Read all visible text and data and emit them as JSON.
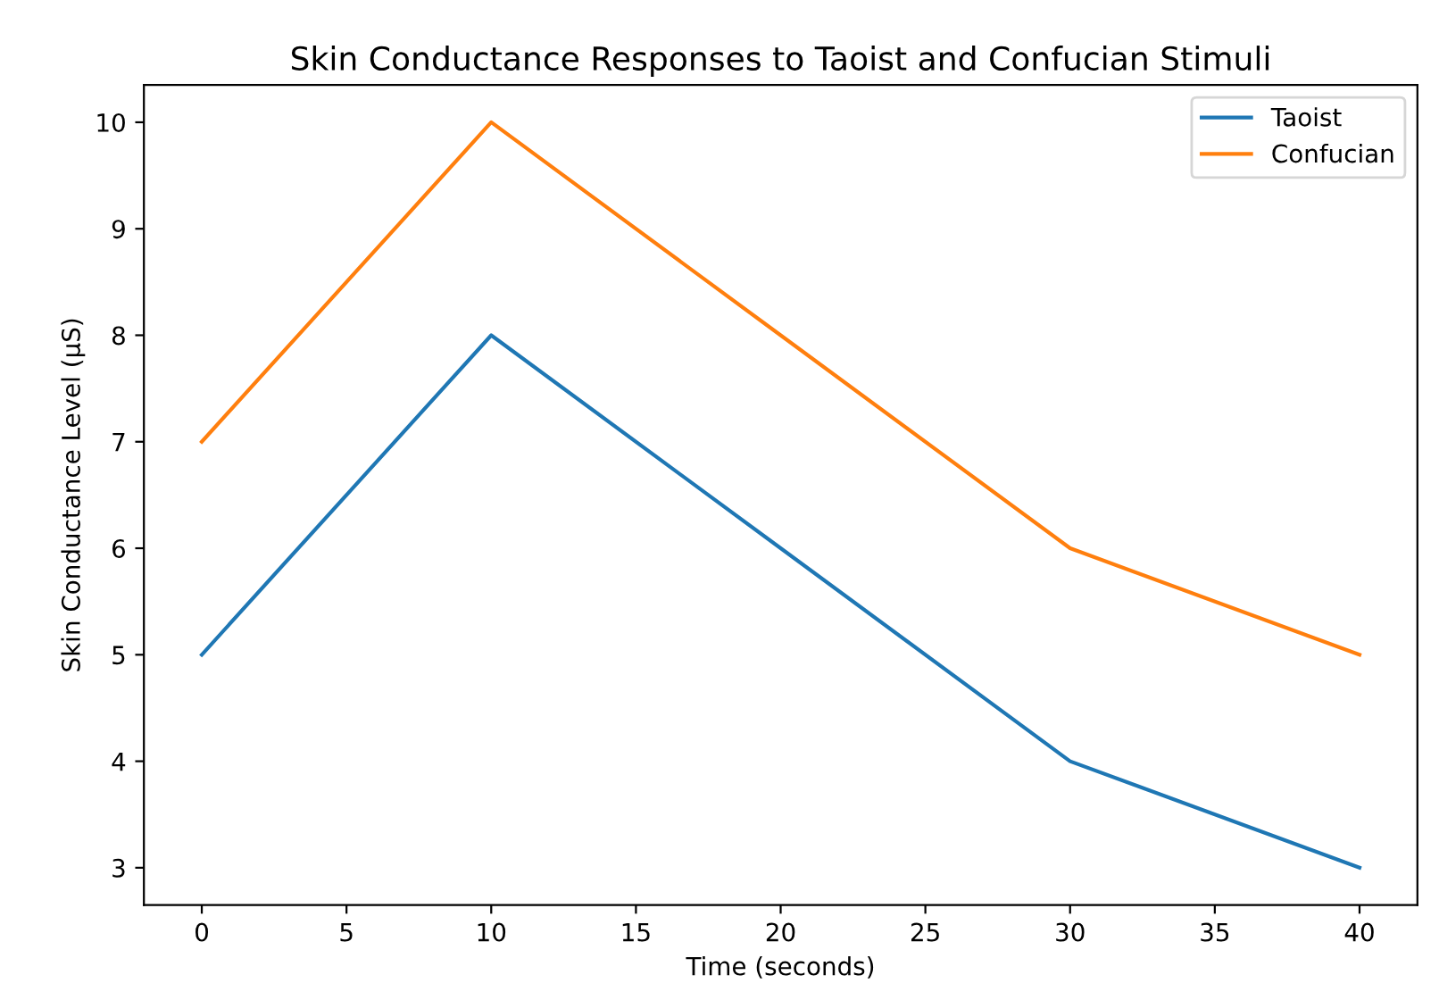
{
  "chart_data": {
    "type": "line",
    "title": "Skin Conductance Responses to Taoist and Confucian Stimuli",
    "xlabel": "Time (seconds)",
    "ylabel": "Skin Conductance Level (μS)",
    "x": [
      0,
      10,
      20,
      30,
      40
    ],
    "series": [
      {
        "name": "Taoist",
        "color": "#1f77b4",
        "values": [
          5,
          8,
          6,
          4,
          3
        ]
      },
      {
        "name": "Confucian",
        "color": "#ff7f0e",
        "values": [
          7,
          10,
          8,
          6,
          5
        ]
      }
    ],
    "xlim": [
      -2,
      42
    ],
    "xticks": [
      0,
      5,
      10,
      15,
      20,
      25,
      30,
      35,
      40
    ],
    "ylim": [
      2.65,
      10.35
    ],
    "yticks": [
      3,
      4,
      5,
      6,
      7,
      8,
      9,
      10
    ],
    "legend": "top right",
    "grid": false,
    "marker": "none",
    "line_style": "solid"
  }
}
